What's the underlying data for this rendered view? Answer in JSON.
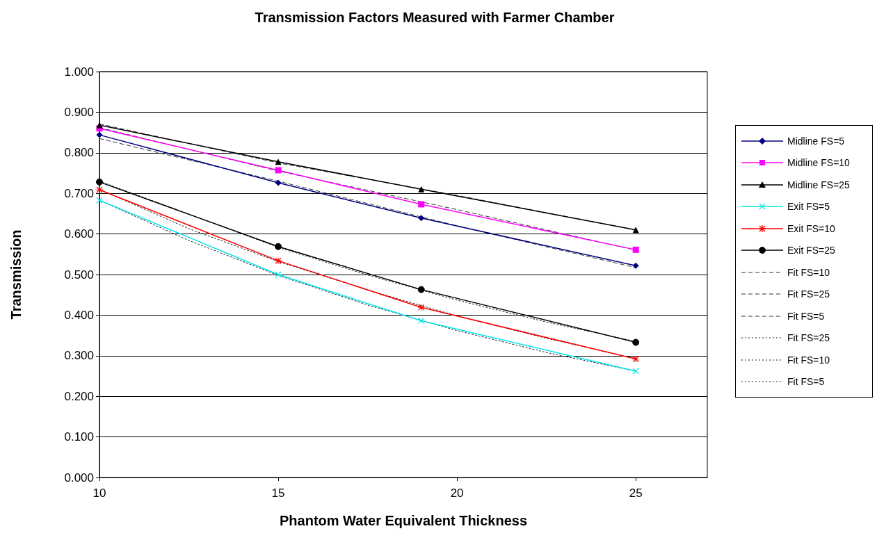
{
  "chart_data": {
    "type": "line",
    "title": "Transmission Factors Measured with Farmer Chamber",
    "xlabel": "Phantom Water Equivalent Thickness",
    "ylabel": "Transmission",
    "x": [
      10,
      15,
      19,
      25
    ],
    "xlim": [
      10,
      27
    ],
    "xticks": [
      10,
      15,
      20,
      25
    ],
    "ylim": [
      0,
      1
    ],
    "yticks": [
      {
        "value": 0,
        "label": "0.000"
      },
      {
        "value": 0.1,
        "label": "0.100"
      },
      {
        "value": 0.2,
        "label": "0.200"
      },
      {
        "value": 0.3,
        "label": "0.300"
      },
      {
        "value": 0.4,
        "label": "0.400"
      },
      {
        "value": 0.5,
        "label": "0.500"
      },
      {
        "value": 0.6,
        "label": "0.600"
      },
      {
        "value": 0.7,
        "label": "0.700"
      },
      {
        "value": 0.8,
        "label": "0.800"
      },
      {
        "value": 0.9,
        "label": "0.900"
      },
      {
        "value": 1,
        "label": "1.000"
      }
    ],
    "grid": "y",
    "legend": "right",
    "line_style": "solid",
    "series": [
      {
        "name": "Midline FS=5",
        "color": "#000080",
        "marker": "diamond",
        "values": [
          0.844,
          0.726,
          0.639,
          0.522
        ]
      },
      {
        "name": "Midline FS=10",
        "color": "#ff00ff",
        "marker": "square",
        "values": [
          0.86,
          0.757,
          0.673,
          0.561
        ]
      },
      {
        "name": "Midline FS=25",
        "color": "#000000",
        "marker": "triangle",
        "values": [
          0.868,
          0.778,
          0.71,
          0.61
        ]
      },
      {
        "name": "Exit FS=5",
        "color": "#00e5ee",
        "marker": "cross",
        "values": [
          0.683,
          0.5,
          0.386,
          0.262
        ]
      },
      {
        "name": "Exit FS=10",
        "color": "#ff0000",
        "marker": "star",
        "values": [
          0.709,
          0.534,
          0.419,
          0.292
        ]
      },
      {
        "name": "Exit FS=25",
        "color": "#000000",
        "marker": "circle",
        "values": [
          0.728,
          0.569,
          0.463,
          0.333
        ]
      },
      {
        "name": "Fit FS=10",
        "color": "#333333",
        "marker": "none",
        "line_style": "dashed",
        "x": [
          10,
          15,
          20,
          25
        ],
        "values": [
          0.862,
          0.755,
          0.66,
          0.56
        ]
      },
      {
        "name": "Fit FS=25",
        "color": "#333333",
        "marker": "none",
        "line_style": "dashed",
        "x": [
          10,
          15,
          20,
          25
        ],
        "values": [
          0.871,
          0.775,
          0.695,
          0.61
        ]
      },
      {
        "name": "Fit FS=5",
        "color": "#333333",
        "marker": "none",
        "line_style": "dashed",
        "x": [
          10,
          15,
          20,
          25
        ],
        "values": [
          0.835,
          0.73,
          0.62,
          0.517
        ]
      },
      {
        "name": "Fit FS=25",
        "color": "#1a1a1a",
        "marker": "none",
        "line_style": "dotted",
        "x": [
          10,
          12.5,
          15,
          17.5,
          20,
          22.5,
          25
        ],
        "values": [
          0.73,
          0.649,
          0.567,
          0.499,
          0.437,
          0.383,
          0.335
        ]
      },
      {
        "name": "Fit FS=10",
        "color": "#1a1a1a",
        "marker": "none",
        "line_style": "dotted",
        "x": [
          10,
          12.5,
          15,
          17.5,
          20,
          22.5,
          25
        ],
        "values": [
          0.71,
          0.613,
          0.532,
          0.462,
          0.398,
          0.343,
          0.293
        ]
      },
      {
        "name": "Fit FS=5",
        "color": "#1a1a1a",
        "marker": "none",
        "line_style": "dotted",
        "x": [
          10,
          12.5,
          15,
          17.5,
          20,
          22.5,
          25
        ],
        "values": [
          0.683,
          0.584,
          0.498,
          0.425,
          0.362,
          0.308,
          0.262
        ]
      }
    ]
  }
}
